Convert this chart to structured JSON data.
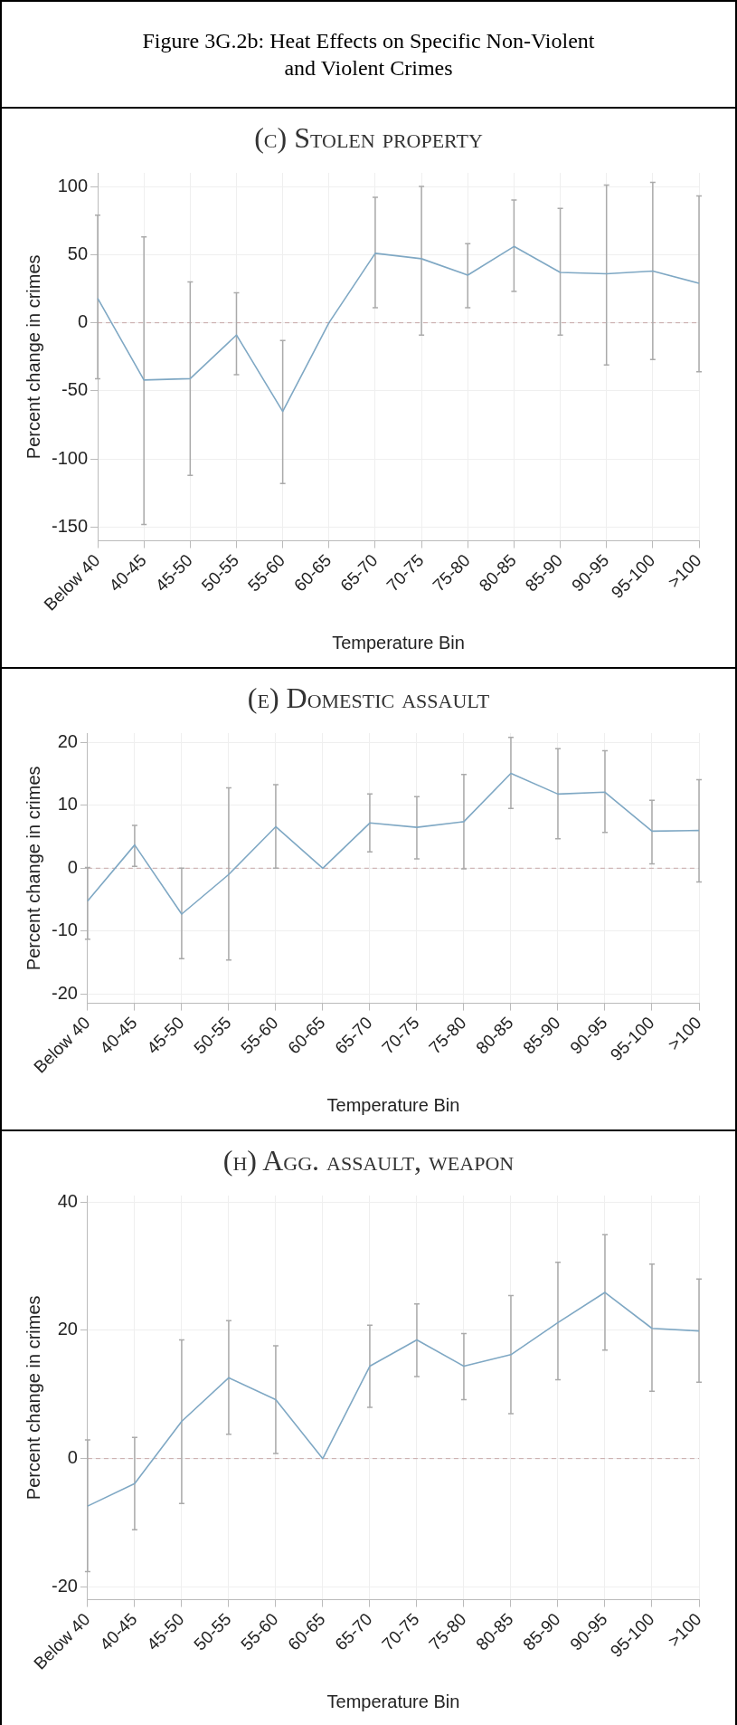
{
  "chart_data": [
    {
      "type": "line",
      "title": "(c) Stolen property",
      "annotations": [
        "Figure 3G.2b: Heat Effects on Specific Non-Violent and Violent Crimes"
      ],
      "xlabel": "Temperature Bin",
      "ylabel": "Percent change in crimes",
      "categories": [
        "Below 40",
        "40-45",
        "45-50",
        "50-55",
        "55-60",
        "60-65",
        "65-70",
        "70-75",
        "75-80",
        "80-85",
        "85-90",
        "90-95",
        "95-100",
        ">100"
      ],
      "series": [
        {
          "color": "#7fa8c4",
          "values": [
            18,
            -42,
            -41,
            -9,
            -65,
            0,
            51,
            47,
            35,
            56,
            37,
            36,
            38,
            29
          ],
          "errors": [
            [
              -41,
              79
            ],
            [
              -148,
              63
            ],
            [
              -112,
              30
            ],
            [
              -38,
              22
            ],
            [
              -118,
              -13
            ],
            null,
            [
              11,
              92
            ],
            [
              -9,
              100
            ],
            [
              11,
              58
            ],
            [
              23,
              90
            ],
            [
              -9,
              84
            ],
            [
              -31,
              101
            ],
            [
              -27,
              103
            ],
            [
              -36,
              93
            ]
          ]
        }
      ],
      "ylim": [
        -160,
        110
      ],
      "yticks": [
        -150,
        -100,
        -50,
        0,
        50,
        100
      ],
      "grid": true,
      "marker": "none",
      "line_style": "solid",
      "ref_lines": [
        {
          "axis": "y",
          "value": 0,
          "color": "#c8a8a8",
          "line_style": "dashed"
        }
      ]
    },
    {
      "type": "line",
      "title": "(e) Domestic assault",
      "xlabel": "Temperature Bin",
      "ylabel": "Percent change in crimes",
      "categories": [
        "Below 40",
        "40-45",
        "45-50",
        "50-55",
        "55-60",
        "60-65",
        "65-70",
        "70-75",
        "75-80",
        "80-85",
        "85-90",
        "90-95",
        "95-100",
        ">100"
      ],
      "series": [
        {
          "color": "#7fa8c4",
          "values": [
            -5.2,
            3.7,
            -7.3,
            -1.0,
            6.6,
            0,
            7.2,
            6.5,
            7.4,
            15.1,
            11.8,
            12.1,
            5.9,
            6.0
          ],
          "errors": [
            [
              -11.3,
              0.1
            ],
            [
              0.3,
              6.8
            ],
            [
              -14.4,
              0
            ],
            [
              -14.6,
              12.8
            ],
            [
              0,
              13.3
            ],
            null,
            [
              2.6,
              11.8
            ],
            [
              1.5,
              11.4
            ],
            [
              -0.1,
              14.9
            ],
            [
              9.5,
              20.8
            ],
            [
              4.7,
              19.0
            ],
            [
              5.7,
              18.7
            ],
            [
              0.7,
              10.8
            ],
            [
              -2.2,
              14.1
            ]
          ]
        }
      ],
      "ylim": [
        -21.5,
        21.5
      ],
      "yticks": [
        -20,
        -10,
        0,
        10,
        20
      ],
      "grid": true,
      "marker": "none",
      "line_style": "solid",
      "ref_lines": [
        {
          "axis": "y",
          "value": 0,
          "color": "#c8a8a8",
          "line_style": "dashed"
        }
      ]
    },
    {
      "type": "line",
      "title": "(h) Agg. assault, weapon",
      "xlabel": "Temperature Bin",
      "ylabel": "Percent change in crimes",
      "categories": [
        "Below 40",
        "40-45",
        "45-50",
        "50-55",
        "55-60",
        "60-65",
        "65-70",
        "70-75",
        "75-80",
        "80-85",
        "85-90",
        "90-95",
        "95-100",
        ">100"
      ],
      "series": [
        {
          "color": "#7fa8c4",
          "values": [
            -7.4,
            -3.9,
            5.8,
            12.6,
            9.2,
            0,
            14.4,
            18.5,
            14.4,
            16.2,
            21.2,
            25.9,
            20.3,
            19.9
          ],
          "errors": [
            [
              -17.6,
              2.9
            ],
            [
              -11.1,
              3.3
            ],
            [
              -7.0,
              18.5
            ],
            [
              3.8,
              21.5
            ],
            [
              0.8,
              17.6
            ],
            null,
            [
              8.0,
              20.8
            ],
            [
              12.8,
              24.1
            ],
            [
              9.2,
              19.5
            ],
            [
              7.0,
              25.4
            ],
            [
              12.3,
              30.6
            ],
            [
              16.9,
              34.9
            ],
            [
              10.5,
              30.3
            ],
            [
              11.9,
              28.0
            ]
          ]
        }
      ],
      "ylim": [
        -22,
        41
      ],
      "yticks": [
        -20,
        0,
        20,
        40
      ],
      "grid": true,
      "marker": "none",
      "line_style": "solid",
      "ref_lines": [
        {
          "axis": "y",
          "value": 0,
          "color": "#c8a8a8",
          "line_style": "dashed"
        }
      ]
    }
  ]
}
